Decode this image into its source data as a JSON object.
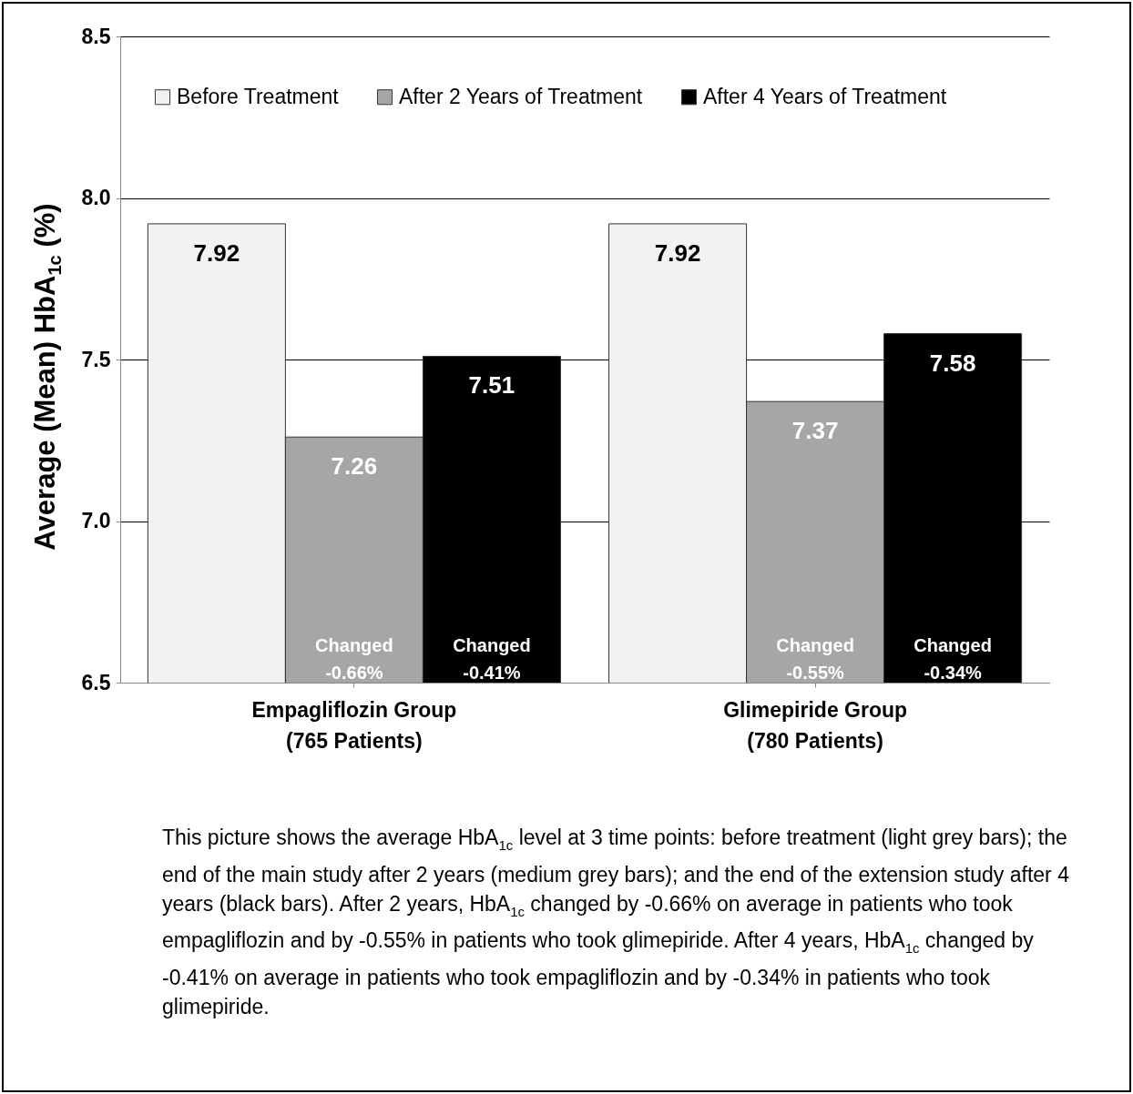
{
  "chart_data": {
    "type": "bar",
    "ylabel": "Average (Mean) HbA$_{1c}$ (%)",
    "categories": [
      "Empagliflozin Group (765 Patients)",
      "Glimepiride Group (780 Patients)"
    ],
    "series": [
      {
        "name": "Before Treatment",
        "color": "#f2f2f2",
        "values": [
          7.92,
          7.92
        ]
      },
      {
        "name": "After 2 Years of Treatment",
        "color": "#a6a6a6",
        "values": [
          7.26,
          7.37
        ]
      },
      {
        "name": "After 4 Years of Treatment",
        "color": "#000000",
        "values": [
          7.51,
          7.58
        ]
      }
    ],
    "ylim": [
      6.5,
      8.5
    ],
    "yticks": [
      6.5,
      {
        "value": 7,
        "label": "7.0"
      },
      7.5,
      {
        "value": 8,
        "label": "8.0"
      },
      8.5
    ],
    "grid": "y",
    "legend": "top",
    "data_labels": true,
    "annotations": [
      "Changed\n-0.66%",
      "Changed\n-0.41%",
      "Changed\n-0.55%",
      "Changed\n-0.34%",
      "This picture shows the average HbA$_{1c}$ level at 3 time points:  before treatment (light grey bars); the end of the main study after 2 years (medium grey bars); and the end of the extension study after 4 years (black bars). After 2 years, HbA$_{1c}$ changed by -0.66% on average in patients who took empagliflozin and by -0.55% in patients who took glimepiride. After 4 years, HbA$_{1c}$ changed by -0.41% on average in patients who took empagliflozin and by -0.34% in patients who took glimepiride."
    ]
  }
}
